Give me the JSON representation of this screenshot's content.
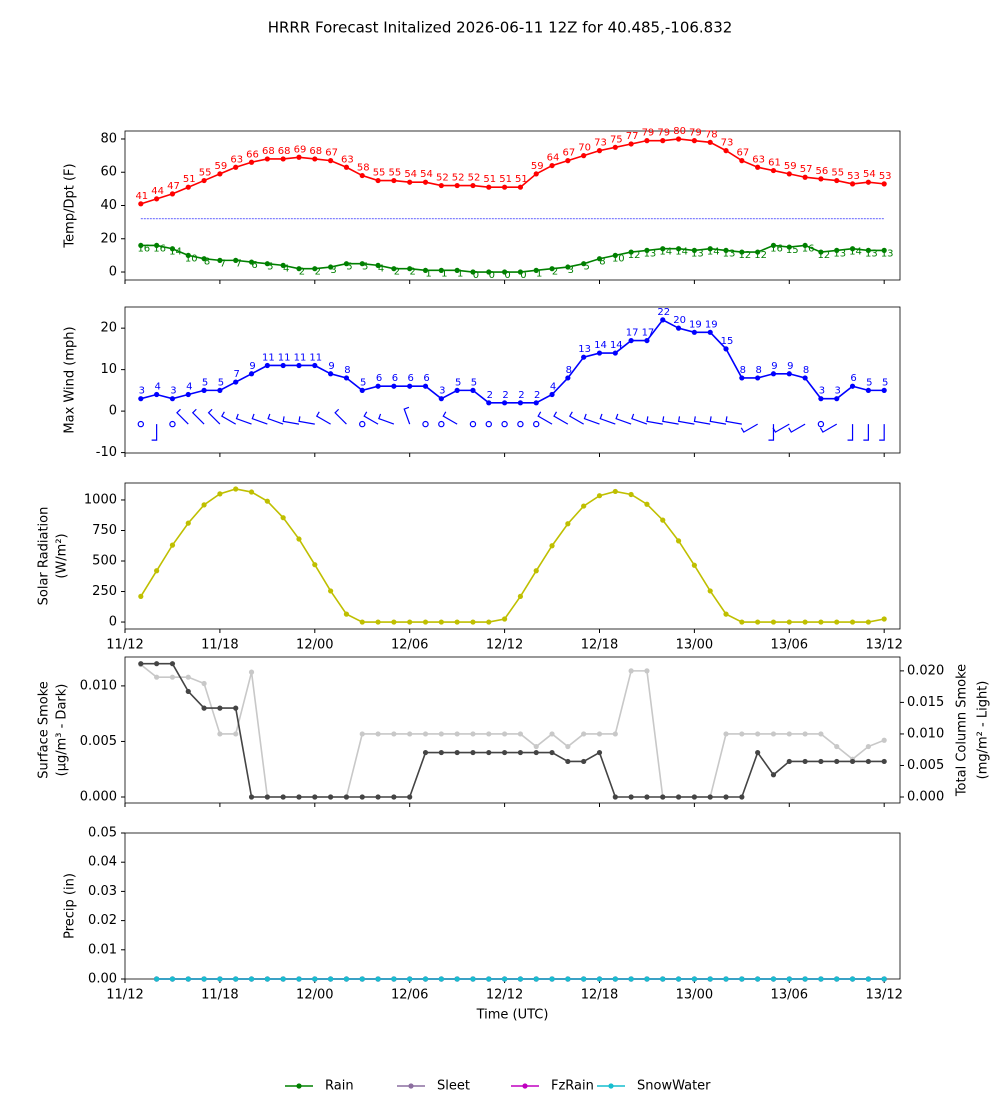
{
  "title": "HRRR Forecast Initalized 2026-06-11 12Z for 40.485,-106.832",
  "chart_data": [
    {
      "type": "line",
      "ylabel": [
        "Temp/Dpt (F)"
      ],
      "x": [
        13,
        14,
        15,
        16,
        17,
        18,
        19,
        20,
        21,
        22,
        23,
        24,
        25,
        26,
        27,
        28,
        29,
        30,
        31,
        32,
        33,
        34,
        35,
        36,
        37,
        38,
        39,
        40,
        41,
        42,
        43,
        44,
        45,
        46,
        47,
        48,
        49,
        50,
        51,
        52,
        53,
        54,
        55,
        56,
        57,
        58,
        59,
        60
      ],
      "xlim": [
        12,
        61
      ],
      "xtick_labels": false,
      "xticks": [
        {
          "value": 12,
          "label": "11/12"
        },
        {
          "value": 18,
          "label": "11/18"
        },
        {
          "value": 24,
          "label": "12/00"
        },
        {
          "value": 30,
          "label": "12/06"
        },
        {
          "value": 36,
          "label": "12/12"
        },
        {
          "value": 42,
          "label": "12/18"
        },
        {
          "value": 48,
          "label": "13/00"
        },
        {
          "value": 54,
          "label": "13/06"
        },
        {
          "value": 60,
          "label": "13/12"
        }
      ],
      "ylim": [
        -4.8,
        84.8
      ],
      "yticks": [
        0,
        20,
        40,
        60,
        80
      ],
      "hlines": [
        {
          "value": 32,
          "color": "#0000ff",
          "dashed": true
        }
      ],
      "series": [
        {
          "color": "#ff0000",
          "labels": "above",
          "values": [
            41,
            44,
            47,
            51,
            55,
            59,
            63,
            66,
            68,
            68,
            69,
            68,
            67,
            63,
            58,
            55,
            55,
            54,
            54,
            52,
            52,
            52,
            51,
            51,
            51,
            59,
            64,
            67,
            70,
            73,
            75,
            77,
            79,
            79,
            80,
            79,
            78,
            73,
            67,
            63,
            61,
            59,
            57,
            56,
            55,
            53,
            54,
            53
          ]
        },
        {
          "color": "#008000",
          "labels": "below",
          "values": [
            16,
            16,
            14,
            10,
            8,
            7,
            7,
            6,
            5,
            4,
            2,
            2,
            3,
            5,
            5,
            4,
            2,
            2,
            1,
            1,
            1,
            0,
            0,
            0,
            0,
            1,
            2,
            3,
            5,
            8,
            10,
            12,
            13,
            14,
            14,
            13,
            14,
            13,
            12,
            12,
            16,
            15,
            16,
            12,
            13,
            14,
            13,
            13
          ]
        }
      ]
    },
    {
      "type": "line",
      "ylabel": [
        "Max Wind (mph)"
      ],
      "x": [
        13,
        14,
        15,
        16,
        17,
        18,
        19,
        20,
        21,
        22,
        23,
        24,
        25,
        26,
        27,
        28,
        29,
        30,
        31,
        32,
        33,
        34,
        35,
        36,
        37,
        38,
        39,
        40,
        41,
        42,
        43,
        44,
        45,
        46,
        47,
        48,
        49,
        50,
        51,
        52,
        53,
        54,
        55,
        56,
        57,
        58,
        59,
        60
      ],
      "xlim": [
        12,
        61
      ],
      "xtick_labels": false,
      "xticks": [
        {
          "value": 12,
          "label": "11/12"
        },
        {
          "value": 18,
          "label": "11/18"
        },
        {
          "value": 24,
          "label": "12/00"
        },
        {
          "value": 30,
          "label": "12/06"
        },
        {
          "value": 36,
          "label": "12/12"
        },
        {
          "value": 42,
          "label": "12/18"
        },
        {
          "value": 48,
          "label": "13/00"
        },
        {
          "value": 54,
          "label": "13/06"
        },
        {
          "value": 60,
          "label": "13/12"
        }
      ],
      "ylim": [
        -10.1,
        25.1
      ],
      "yticks": [
        -10,
        0,
        10,
        20
      ],
      "series": [
        {
          "color": "#0000ff",
          "labels": "above",
          "values": [
            3,
            4,
            3,
            4,
            5,
            5,
            7,
            9,
            11,
            11,
            11,
            11,
            9,
            8,
            5,
            6,
            6,
            6,
            6,
            3,
            5,
            5,
            2,
            2,
            2,
            2,
            4,
            8,
            13,
            14,
            14,
            17,
            17,
            22,
            20,
            19,
            19,
            15,
            8,
            8,
            9,
            9,
            8,
            3,
            3,
            6,
            5,
            5
          ]
        }
      ],
      "wind_direction": [
        null,
        180,
        null,
        315,
        315,
        315,
        300,
        290,
        290,
        290,
        280,
        280,
        300,
        315,
        null,
        300,
        290,
        340,
        null,
        null,
        300,
        null,
        null,
        null,
        null,
        null,
        300,
        300,
        300,
        290,
        290,
        290,
        290,
        280,
        280,
        280,
        280,
        280,
        280,
        240,
        180,
        240,
        240,
        null,
        240,
        180,
        180,
        180
      ]
    },
    {
      "type": "line",
      "ylabel": [
        "Solar Radiation",
        "(W/m²)"
      ],
      "x": [
        13,
        14,
        15,
        16,
        17,
        18,
        19,
        20,
        21,
        22,
        23,
        24,
        25,
        26,
        27,
        28,
        29,
        30,
        31,
        32,
        33,
        34,
        35,
        36,
        37,
        38,
        39,
        40,
        41,
        42,
        43,
        44,
        45,
        46,
        47,
        48,
        49,
        50,
        51,
        52,
        53,
        54,
        55,
        56,
        57,
        58,
        59,
        60
      ],
      "xlim": [
        12,
        61
      ],
      "xtick_labels": true,
      "xticks": [
        {
          "value": 12,
          "label": "11/12"
        },
        {
          "value": 18,
          "label": "11/18"
        },
        {
          "value": 24,
          "label": "12/00"
        },
        {
          "value": 30,
          "label": "12/06"
        },
        {
          "value": 36,
          "label": "12/12"
        },
        {
          "value": 42,
          "label": "12/18"
        },
        {
          "value": 48,
          "label": "13/00"
        },
        {
          "value": 54,
          "label": "13/06"
        },
        {
          "value": 60,
          "label": "13/12"
        }
      ],
      "ylim": [
        -57,
        1139
      ],
      "yticks": [
        0,
        250,
        500,
        750,
        1000
      ],
      "series": [
        {
          "color": "#bfbf00",
          "values": [
            210,
            420,
            630,
            810,
            960,
            1050,
            1090,
            1065,
            990,
            855,
            680,
            470,
            255,
            65,
            0,
            0,
            0,
            0,
            0,
            0,
            0,
            0,
            0,
            25,
            210,
            420,
            625,
            805,
            950,
            1035,
            1070,
            1045,
            965,
            835,
            665,
            465,
            255,
            65,
            0,
            0,
            0,
            0,
            0,
            0,
            0,
            0,
            0,
            25
          ]
        }
      ]
    },
    {
      "type": "line",
      "ylabel": [
        "Surface Smoke",
        "(μg/m³ - Dark)"
      ],
      "y2label": [
        "Total Column Smoke",
        "(mg/m² - Light)"
      ],
      "x": [
        13,
        14,
        15,
        16,
        17,
        18,
        19,
        20,
        21,
        22,
        23,
        24,
        25,
        26,
        27,
        28,
        29,
        30,
        31,
        32,
        33,
        34,
        35,
        36,
        37,
        38,
        39,
        40,
        41,
        42,
        43,
        44,
        45,
        46,
        47,
        48,
        49,
        50,
        51,
        52,
        53,
        54,
        55,
        56,
        57,
        58,
        59,
        60
      ],
      "xlim": [
        12,
        61
      ],
      "xtick_labels": false,
      "xticks": [
        {
          "value": 12,
          "label": "11/12"
        },
        {
          "value": 18,
          "label": "11/18"
        },
        {
          "value": 24,
          "label": "12/00"
        },
        {
          "value": 30,
          "label": "12/06"
        },
        {
          "value": 36,
          "label": "12/12"
        },
        {
          "value": 42,
          "label": "12/18"
        },
        {
          "value": 48,
          "label": "13/00"
        },
        {
          "value": 54,
          "label": "13/06"
        },
        {
          "value": 60,
          "label": "13/12"
        }
      ],
      "ylim": [
        -0.00054,
        0.0126
      ],
      "yticks": [
        {
          "value": 0,
          "label": "0.000"
        },
        {
          "value": 0.005,
          "label": "0.005"
        },
        {
          "value": 0.01,
          "label": "0.010"
        }
      ],
      "y2lim": [
        -0.00095,
        0.0222
      ],
      "y2ticks": [
        {
          "value": 0,
          "label": "0.000"
        },
        {
          "value": 0.005,
          "label": "0.005"
        },
        {
          "value": 0.01,
          "label": "0.010"
        },
        {
          "value": 0.015,
          "label": "0.015"
        },
        {
          "value": 0.02,
          "label": "0.020"
        }
      ],
      "series": [
        {
          "color": "#c8c8c8",
          "axis": "y2",
          "values": [
            0.021,
            0.019,
            0.019,
            0.019,
            0.018,
            0.01,
            0.01,
            0.0198,
            0,
            0,
            0,
            0,
            0,
            0,
            0.01,
            0.01,
            0.01,
            0.01,
            0.01,
            0.01,
            0.01,
            0.01,
            0.01,
            0.01,
            0.01,
            0.008,
            0.01,
            0.008,
            0.01,
            0.01,
            0.01,
            0.02,
            0.02,
            0,
            0,
            0,
            0,
            0.01,
            0.01,
            0.01,
            0.01,
            0.01,
            0.01,
            0.01,
            0.008,
            0.006,
            0.008,
            0.009
          ]
        },
        {
          "color": "#444444",
          "values": [
            0.012,
            0.012,
            0.012,
            0.0095,
            0.008,
            0.008,
            0.008,
            0,
            0,
            0,
            0,
            0,
            0,
            0,
            0,
            0,
            0,
            0,
            0.004,
            0.004,
            0.004,
            0.004,
            0.004,
            0.004,
            0.004,
            0.004,
            0.004,
            0.0032,
            0.0032,
            0.004,
            0,
            0,
            0,
            0,
            0,
            0,
            0,
            0,
            0,
            0.004,
            0.002,
            0.0032,
            0.0032,
            0.0032,
            0.0032,
            0.0032,
            0.0032,
            0.0032
          ]
        }
      ]
    },
    {
      "type": "line",
      "ylabel": [
        "Precip (in)"
      ],
      "xlabel": "Time (UTC)",
      "x": [
        14,
        15,
        16,
        17,
        18,
        19,
        20,
        21,
        22,
        23,
        24,
        25,
        26,
        27,
        28,
        29,
        30,
        31,
        32,
        33,
        34,
        35,
        36,
        37,
        38,
        39,
        40,
        41,
        42,
        43,
        44,
        45,
        46,
        47,
        48,
        49,
        50,
        51,
        52,
        53,
        54,
        55,
        56,
        57,
        58,
        59,
        60
      ],
      "xlim": [
        12,
        61
      ],
      "xtick_labels": true,
      "xticks": [
        {
          "value": 12,
          "label": "11/12"
        },
        {
          "value": 18,
          "label": "11/18"
        },
        {
          "value": 24,
          "label": "12/00"
        },
        {
          "value": 30,
          "label": "12/06"
        },
        {
          "value": 36,
          "label": "12/12"
        },
        {
          "value": 42,
          "label": "12/18"
        },
        {
          "value": 48,
          "label": "13/00"
        },
        {
          "value": 54,
          "label": "13/06"
        },
        {
          "value": 60,
          "label": "13/12"
        }
      ],
      "ylim": [
        0,
        0.05
      ],
      "yticks": [
        {
          "value": 0,
          "label": "0.00"
        },
        {
          "value": 0.01,
          "label": "0.01"
        },
        {
          "value": 0.02,
          "label": "0.02"
        },
        {
          "value": 0.03,
          "label": "0.03"
        },
        {
          "value": 0.04,
          "label": "0.04"
        },
        {
          "value": 0.05,
          "label": "0.05"
        }
      ],
      "legend": "bottom",
      "series": [
        {
          "name": "Rain",
          "color": "#008000",
          "values": [
            0,
            0,
            0,
            0,
            0,
            0,
            0,
            0,
            0,
            0,
            0,
            0,
            0,
            0,
            0,
            0,
            0,
            0,
            0,
            0,
            0,
            0,
            0,
            0,
            0,
            0,
            0,
            0,
            0,
            0,
            0,
            0,
            0,
            0,
            0,
            0,
            0,
            0,
            0,
            0,
            0,
            0,
            0,
            0,
            0,
            0,
            0
          ]
        },
        {
          "name": "Sleet",
          "color": "#8c6ea0",
          "values": [
            0,
            0,
            0,
            0,
            0,
            0,
            0,
            0,
            0,
            0,
            0,
            0,
            0,
            0,
            0,
            0,
            0,
            0,
            0,
            0,
            0,
            0,
            0,
            0,
            0,
            0,
            0,
            0,
            0,
            0,
            0,
            0,
            0,
            0,
            0,
            0,
            0,
            0,
            0,
            0,
            0,
            0,
            0,
            0,
            0,
            0,
            0
          ]
        },
        {
          "name": "FzRain",
          "color": "#c000c0",
          "values": [
            0,
            0,
            0,
            0,
            0,
            0,
            0,
            0,
            0,
            0,
            0,
            0,
            0,
            0,
            0,
            0,
            0,
            0,
            0,
            0,
            0,
            0,
            0,
            0,
            0,
            0,
            0,
            0,
            0,
            0,
            0,
            0,
            0,
            0,
            0,
            0,
            0,
            0,
            0,
            0,
            0,
            0,
            0,
            0,
            0,
            0,
            0
          ]
        },
        {
          "name": "SnowWater",
          "color": "#17becf",
          "values": [
            0,
            0,
            0,
            0,
            0,
            0,
            0,
            0,
            0,
            0,
            0,
            0,
            0,
            0,
            0,
            0,
            0,
            0,
            0,
            0,
            0,
            0,
            0,
            0,
            0,
            0,
            0,
            0,
            0,
            0,
            0,
            0,
            0,
            0,
            0,
            0,
            0,
            0,
            0,
            0,
            0,
            0,
            0,
            0,
            0,
            0,
            0
          ]
        }
      ]
    }
  ]
}
